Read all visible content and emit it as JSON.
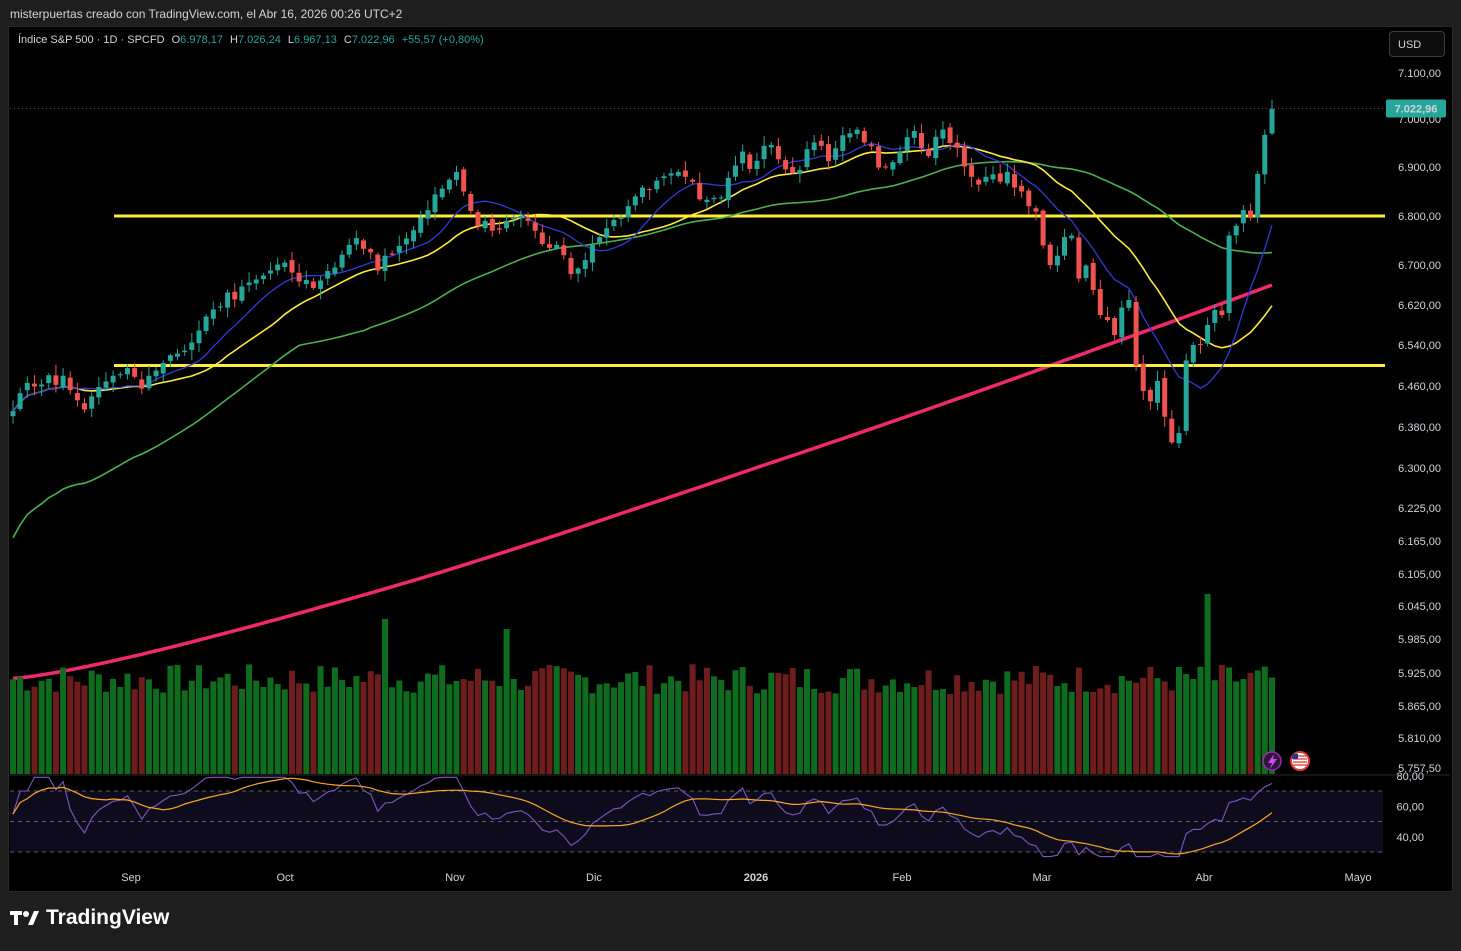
{
  "header": {
    "text": "misterpuertas creado con TradingView.com, el Abr 16, 2026 00:26 UTC+2"
  },
  "symbol": {
    "name": "Índice S&P 500 · 1D · SPCFD",
    "o_label": "O",
    "o": "6.978,17",
    "h_label": "H",
    "h": "7.026,24",
    "l_label": "L",
    "l": "6.967,13",
    "c_label": "C",
    "c": "7.022,96",
    "change": "+55,57 (+0,80%)"
  },
  "currency": "USD",
  "footer": {
    "brand": "TradingView"
  },
  "colors": {
    "up": "#26a69a",
    "down": "#ef5350",
    "vol_up": "#0f6b1e",
    "vol_down": "#6e1d1d",
    "level": "#ffeb3b",
    "sma200": "#f0286e",
    "sma50": "#4caf50",
    "sma20": "#ffeb3b",
    "sma10": "#2f3bd6",
    "rsi": "#7e57c2",
    "rsi_ma": "#f9a825"
  },
  "chart_data": {
    "type": "candlestick",
    "x_labels": [
      "Sep",
      "Oct",
      "Nov",
      "Dic",
      "2026",
      "Feb",
      "Mar",
      "Abr",
      "Mayo"
    ],
    "y_ticks": [
      "7.100,00",
      "7.000,00",
      "6.900,00",
      "6.800,00",
      "6.700,00",
      "6.620,00",
      "6.540,00",
      "6.460,00",
      "6.380,00",
      "6.300,00",
      "6.225,00",
      "6.165,00",
      "6.105,00",
      "6.045,00",
      "5.985,00",
      "5.925,00",
      "5.865,00",
      "5.810,00",
      "5.757,50"
    ],
    "last_price": "7.022,96",
    "horizontal_levels": [
      6800,
      6500
    ],
    "closes": [
      6411,
      6446,
      6466,
      6459,
      6463,
      6481,
      6462,
      6480,
      6452,
      6432,
      6414,
      6440,
      6458,
      6469,
      6480,
      6483,
      6495,
      6478,
      6455,
      6480,
      6490,
      6505,
      6520,
      6523,
      6529,
      6545,
      6569,
      6597,
      6611,
      6617,
      6645,
      6631,
      6657,
      6665,
      6671,
      6679,
      6689,
      6701,
      6705,
      6685,
      6667,
      6670,
      6654,
      6669,
      6688,
      6695,
      6721,
      6741,
      6755,
      6733,
      6726,
      6689,
      6719,
      6721,
      6739,
      6754,
      6771,
      6797,
      6812,
      6844,
      6856,
      6874,
      6890,
      6850,
      6810,
      6780,
      6790,
      6770,
      6772,
      6790,
      6796,
      6800,
      6790,
      6770,
      6743,
      6735,
      6741,
      6720,
      6682,
      6693,
      6710,
      6741,
      6757,
      6775,
      6792,
      6796,
      6820,
      6840,
      6858,
      6853,
      6872,
      6881,
      6887,
      6890,
      6880,
      6870,
      6834,
      6833,
      6837,
      6838,
      6878,
      6903,
      6932,
      6896,
      6913,
      6944,
      6946,
      6916,
      6895,
      6888,
      6894,
      6937,
      6951,
      6944,
      6912,
      6939,
      6966,
      6970,
      6978,
      6951,
      6943,
      6899,
      6899,
      6910,
      6932,
      6962,
      6975,
      6940,
      6923,
      6963,
      6978,
      6950,
      6940,
      6901,
      6880,
      6864,
      6880,
      6885,
      6870,
      6890,
      6858,
      6850,
      6820,
      6809,
      6740,
      6700,
      6719,
      6757,
      6760,
      6673,
      6699,
      6650,
      6600,
      6590,
      6560,
      6615,
      6630,
      6500,
      6450,
      6430,
      6470,
      6400,
      6350,
      6368,
      6510,
      6540,
      6540,
      6580,
      6610,
      6600,
      6760,
      6780,
      6812,
      6798,
      6886,
      6967,
      7022
    ],
    "volume_note": "bars under price",
    "rsi_levels": [
      70,
      50,
      30
    ],
    "rsi_ticks": [
      "80,00",
      "60,00",
      "40,00"
    ]
  }
}
